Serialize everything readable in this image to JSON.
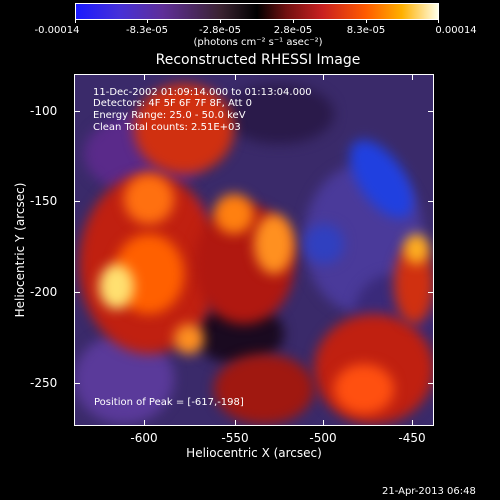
{
  "colorbar": {
    "labels": [
      "-0.00014",
      "-8.3e-05",
      "-2.8e-05",
      "2.8e-05",
      "8.3e-05",
      "0.00014"
    ],
    "units": "(photons cm⁻² s⁻¹ asec⁻²)"
  },
  "plot": {
    "title": "Reconstructed RHESSI Image",
    "info_lines": [
      "11-Dec-2002 01:09:14.000 to 01:13:04.000",
      "Detectors: 4F 5F 6F 7F 8F, Att 0",
      "Energy Range: 25.0 - 50.0 keV",
      "Clean     Total counts: 2.51E+03"
    ],
    "peak_text": "Position of Peak = [-617,-198]"
  },
  "axes": {
    "x_title": "Heliocentric X (arcsec)",
    "y_title": "Heliocentric Y (arcsec)",
    "x_ticks": [
      "-600",
      "-550",
      "-500",
      "-450"
    ],
    "y_ticks": [
      "-100",
      "-150",
      "-200",
      "-250"
    ]
  },
  "footer": {
    "date": "21-Apr-2013 06:48"
  },
  "colors": {
    "background": "#000000",
    "negative": "#1a1aff",
    "positive_hot": "#ffb000",
    "peak": "#ffffe8"
  }
}
